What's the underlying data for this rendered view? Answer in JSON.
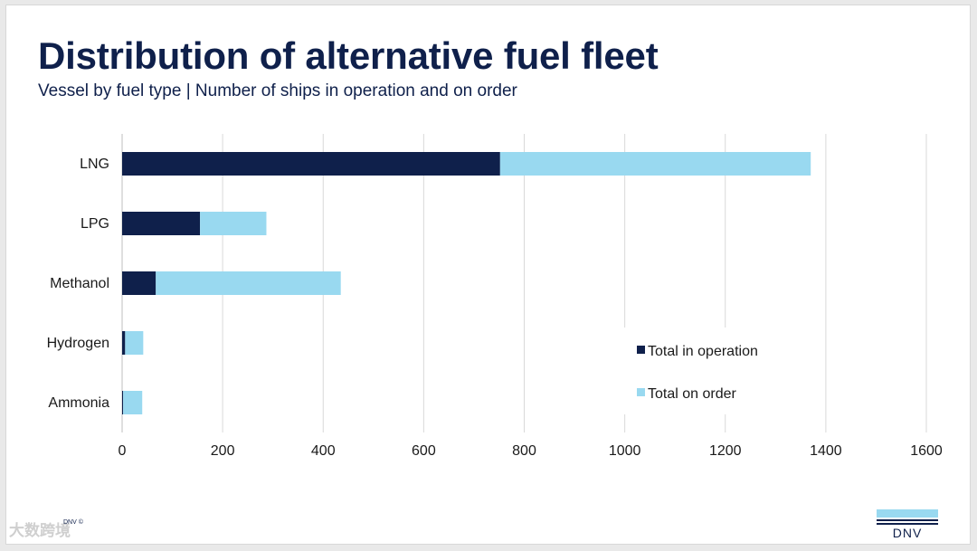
{
  "slide": {
    "title": "Distribution of alternative fuel fleet",
    "subtitle": "Vessel by fuel type | Number of ships in operation and on order",
    "footer_copyright": "DNV ©",
    "watermark": "大数跨境",
    "logo_text": "DNV"
  },
  "colors": {
    "title": "#0f204b",
    "in_operation": "#0f204b",
    "on_order": "#99d9f0",
    "grid": "#d9d9d9"
  },
  "chart_data": {
    "type": "bar",
    "orientation": "horizontal",
    "stacked": true,
    "categories": [
      "LNG",
      "LPG",
      "Methanol",
      "Hydrogen",
      "Ammonia"
    ],
    "series": [
      {
        "name": "Total in operation",
        "values": [
          752,
          155,
          67,
          6,
          2
        ]
      },
      {
        "name": "Total on order",
        "values": [
          618,
          132,
          368,
          36,
          38
        ]
      }
    ],
    "xlim": [
      0,
      1600
    ],
    "xticks": [
      0,
      200,
      400,
      600,
      800,
      1000,
      1200,
      1400,
      1600
    ],
    "grid": true,
    "legend_position": "bottom-right"
  }
}
